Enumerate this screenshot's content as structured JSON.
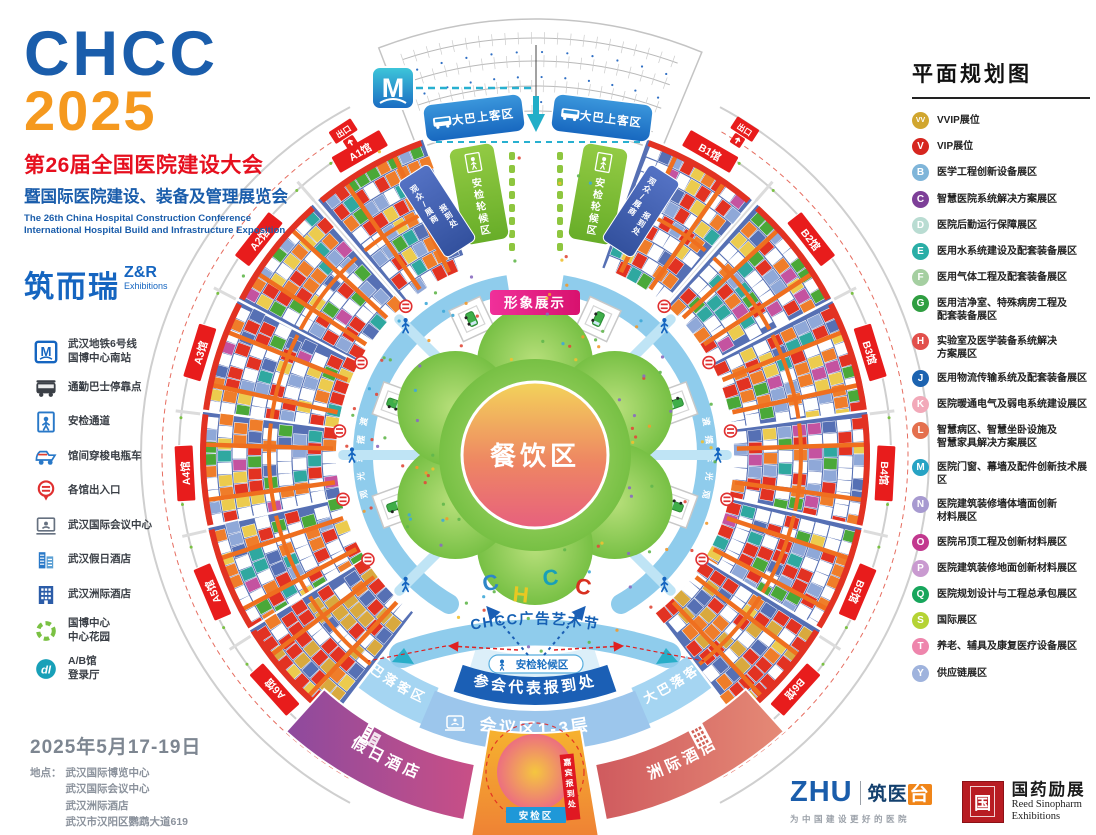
{
  "branding": {
    "chcc": "CHCC",
    "year": "2025",
    "title_cn": "第26届全国医院建设大会",
    "subtitle_cn": "暨国际医院建设、装备及管理展览会",
    "title_en1": "The 26th China Hospital Construction Conference",
    "title_en2": "International Hospital Build and Infrastructure Exposition",
    "organizer_cn": "筑而瑞",
    "organizer_zr": "Z&R",
    "organizer_ex": "Exhibitions"
  },
  "facility_legend": {
    "items": [
      {
        "icon": "metro-icon",
        "label": "武汉地铁6号线\n国博中心南站"
      },
      {
        "icon": "bus-icon",
        "label": "通勤巴士停靠点"
      },
      {
        "icon": "security-gate-icon",
        "label": "安检通道"
      },
      {
        "icon": "shuttle-cart-icon",
        "label": "馆间穿梭电瓶车"
      },
      {
        "icon": "entrance-icon",
        "label": "各馆出入口"
      },
      {
        "icon": "conference-center-icon",
        "label": "武汉国际会议中心"
      },
      {
        "icon": "holiday-inn-icon",
        "label": "武汉假日酒店"
      },
      {
        "icon": "intercontinental-icon",
        "label": "武汉洲际酒店"
      },
      {
        "icon": "garden-icon",
        "label": "国博中心\n中心花园"
      },
      {
        "icon": "login-hall-icon",
        "label": "A/B馆\n登录厅"
      }
    ]
  },
  "plan_legend": {
    "title": "平面规划图",
    "items": [
      {
        "code": "VV",
        "color": "#d1a62f",
        "label": "VVIP展位"
      },
      {
        "code": "V",
        "color": "#d6261f",
        "label": "VIP展位"
      },
      {
        "code": "B",
        "color": "#7fb5d9",
        "label": "医学工程创新设备展区"
      },
      {
        "code": "C",
        "color": "#7d3f98",
        "label": "智慧医院系统解决方案展区"
      },
      {
        "code": "D",
        "color": "#b9dcd2",
        "label": "医院后勤运行保障展区"
      },
      {
        "code": "E",
        "color": "#2aaea6",
        "label": "医用水系统建设及配套装备展区"
      },
      {
        "code": "F",
        "color": "#a5cfa1",
        "label": "医用气体工程及配套装备展区"
      },
      {
        "code": "G",
        "color": "#2f9e41",
        "label": "医用洁净室、特殊病房工程及\n配套装备展区"
      },
      {
        "code": "H",
        "color": "#e2504c",
        "label": "实验室及医学装备系统解决\n方案展区"
      },
      {
        "code": "J",
        "color": "#1c63b0",
        "label": "医用物流传输系统及配套装备展区"
      },
      {
        "code": "K",
        "color": "#f2a9b9",
        "label": "医院暖通电气及弱电系统建设展区"
      },
      {
        "code": "L",
        "color": "#e4704e",
        "label": "智慧病区、智慧坐卧设施及\n智慧家具解决方案展区"
      },
      {
        "code": "M",
        "color": "#27a3c4",
        "label": "医院门窗、幕墙及配件创新技术展区"
      },
      {
        "code": "N",
        "color": "#a79ad0",
        "label": "医院建筑装修墙体墙面创新\n材料展区"
      },
      {
        "code": "O",
        "color": "#c2388e",
        "label": "医院吊顶工程及创新材料展区"
      },
      {
        "code": "P",
        "color": "#c99ad0",
        "label": "医院建筑装修地面创新材料展区"
      },
      {
        "code": "Q",
        "color": "#17a65c",
        "label": "医院规划设计与工程总承包展区"
      },
      {
        "code": "S",
        "color": "#b5d334",
        "label": "国际展区"
      },
      {
        "code": "T",
        "color": "#ee85ac",
        "label": "养老、辅具及康复医疗设备展区"
      },
      {
        "code": "Y",
        "color": "#9fb3dd",
        "label": "供应链展区"
      }
    ]
  },
  "map": {
    "halls": [
      "A1馆",
      "A2馆",
      "A3馆",
      "A4馆",
      "A5馆",
      "A6馆",
      "B1馆",
      "B2馆",
      "B3馆",
      "B4馆",
      "B5馆",
      "B6馆"
    ],
    "labels": {
      "dining": "餐饮区",
      "image_display": "形象展示",
      "security_wait": "安检轮候区",
      "bus_boarding": "大巴上客区",
      "bus_dropoff": "大巴落客区",
      "visitor_checkin_1": "观众/展商",
      "visitor_checkin_2": "报到处",
      "delegate_checkin": "参会代表报到处",
      "conference_zone": "会议区1-3层",
      "art_festival": "CHCC广告艺术节",
      "security_area": "安检区",
      "vip_checkin": "嘉宾报到处",
      "holiday_inn": "假日酒店",
      "intercontinental": "洲际酒店",
      "exit": "出口",
      "metro": "M",
      "shuttle_ring": "渡摆车光观",
      "chcc_letters": [
        "C",
        "H",
        "C",
        "C"
      ]
    },
    "colors": {
      "hall_label_bg": "#e81c1c",
      "booth_base": "#5670b4",
      "aisle": "#ef6f1f",
      "ring_road": "#8fccec",
      "accent_green": "#8ec63f",
      "accent_blue": "#1b5fb5"
    }
  },
  "footer": {
    "date": "2025年5月17-19日",
    "venue_label": "地点：",
    "venues": "武汉国际博览中心\n武汉国际会议中心\n武汉洲际酒店\n武汉市汉阳区鹦鹉大道619",
    "zhu_word": "ZHU",
    "zhu_brand_1": "筑医",
    "zhu_brand_2": "台",
    "zhu_slogan": "为中国建设更好的医院",
    "reed_seal": "国",
    "reed_cn": "国药励展",
    "reed_en1": "Reed Sinopharm",
    "reed_en2": "Exhibitions"
  }
}
